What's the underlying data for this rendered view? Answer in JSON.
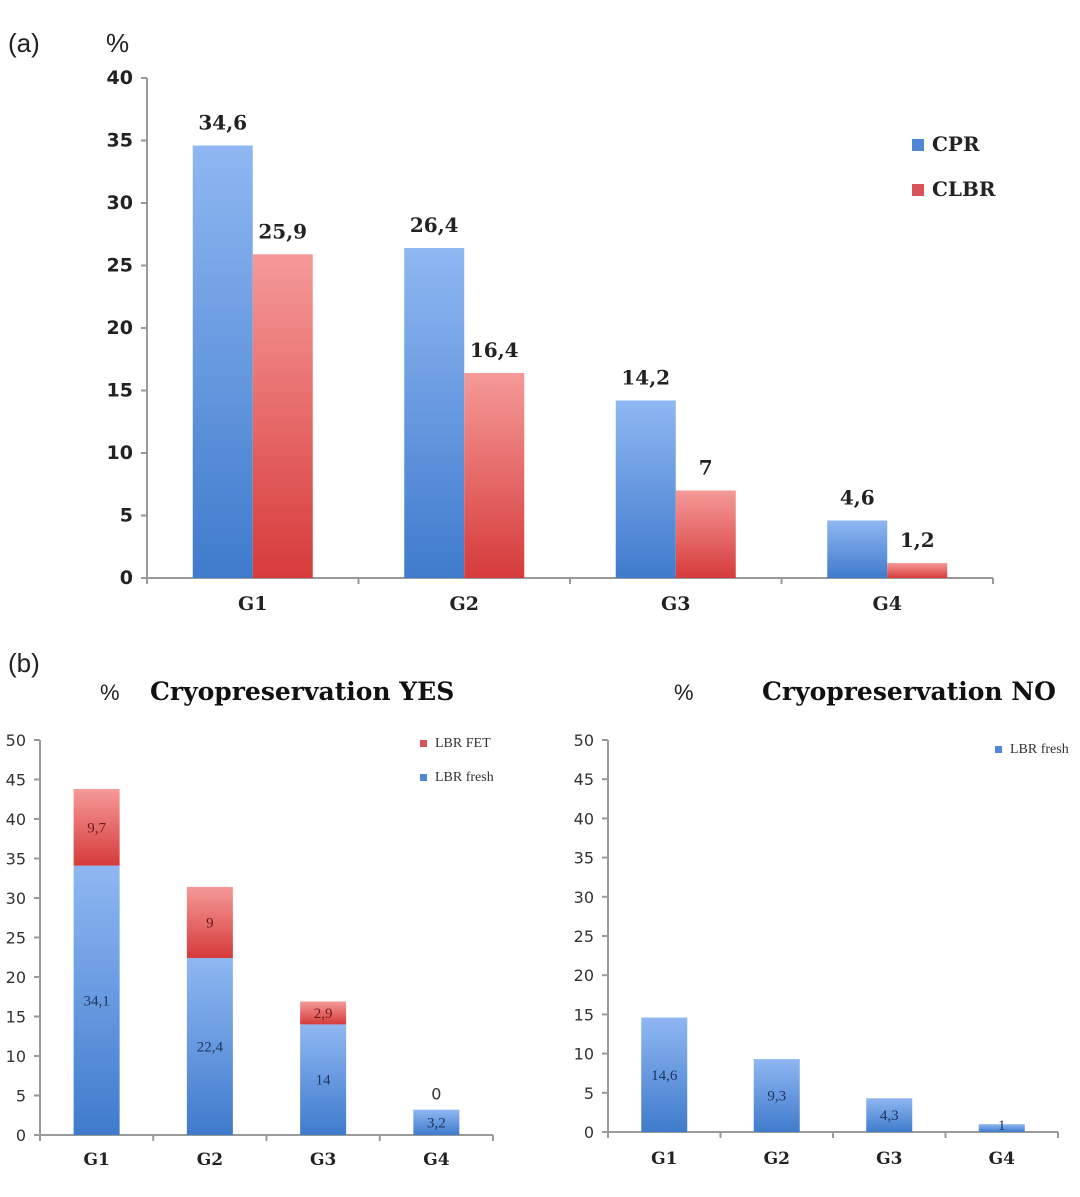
{
  "figure": {
    "panel_a_label": "(a)",
    "panel_b_label": "(b)"
  },
  "chart_data": [
    {
      "type": "bar",
      "panel": "(a)",
      "title": "",
      "ylabel": "%",
      "xlabel": "",
      "ylim": [
        0,
        40
      ],
      "yticks": [
        0,
        5,
        10,
        15,
        20,
        25,
        30,
        35,
        40
      ],
      "categories": [
        "G1",
        "G2",
        "G3",
        "G4"
      ],
      "series": [
        {
          "name": "CPR",
          "color": "#5b8fd9",
          "values": [
            34.6,
            26.4,
            14.2,
            4.6
          ],
          "labels": [
            "34,6",
            "26,4",
            "14,2",
            "4,6"
          ]
        },
        {
          "name": "CLBR",
          "color": "#e05a5a",
          "values": [
            25.9,
            16.4,
            7,
            1.2
          ],
          "labels": [
            "25,9",
            "16,4",
            "7",
            "1,2"
          ]
        }
      ],
      "legend": {
        "position": "top-right",
        "entries": [
          "CPR",
          "CLBR"
        ]
      },
      "grid": false
    },
    {
      "type": "bar",
      "stacked": true,
      "panel": "(b)",
      "title": "Cryopreservation YES",
      "ylabel": "%",
      "xlabel": "",
      "ylim": [
        0,
        50
      ],
      "yticks": [
        0,
        5,
        10,
        15,
        20,
        25,
        30,
        35,
        40,
        45,
        50
      ],
      "categories": [
        "G1",
        "G2",
        "G3",
        "G4"
      ],
      "series": [
        {
          "name": "LBR fresh",
          "color": "#5b8fd9",
          "values": [
            34.1,
            22.4,
            14,
            3.2
          ],
          "labels": [
            "34,1",
            "22,4",
            "14",
            "3,2"
          ]
        },
        {
          "name": "LBR FET",
          "color": "#e05a5a",
          "values": [
            9.7,
            9,
            2.9,
            0
          ],
          "labels": [
            "9,7",
            "9",
            "2,9",
            "0"
          ]
        }
      ],
      "legend": {
        "position": "top-right",
        "entries": [
          "LBR FET",
          "LBR fresh"
        ]
      },
      "grid": false
    },
    {
      "type": "bar",
      "panel": "(b)",
      "title": "Cryopreservation NO",
      "ylabel": "%",
      "xlabel": "",
      "ylim": [
        0,
        50
      ],
      "yticks": [
        0,
        5,
        10,
        15,
        20,
        25,
        30,
        35,
        40,
        45,
        50
      ],
      "categories": [
        "G1",
        "G2",
        "G3",
        "G4"
      ],
      "series": [
        {
          "name": "LBR fresh",
          "color": "#5b8fd9",
          "values": [
            14.6,
            9.3,
            4.3,
            1
          ],
          "labels": [
            "14,6",
            "9,3",
            "4,3",
            "1"
          ]
        }
      ],
      "legend": {
        "position": "top-right",
        "entries": [
          "LBR fresh"
        ]
      },
      "grid": false
    }
  ]
}
